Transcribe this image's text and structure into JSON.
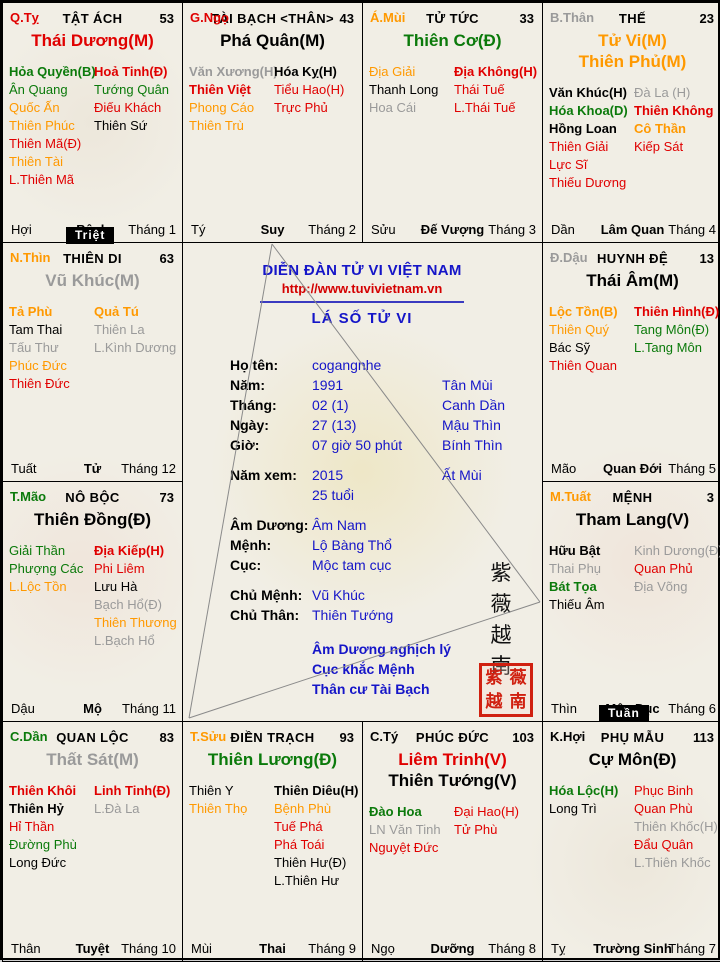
{
  "page": {
    "forum_title": "DIỄN ĐÀN TỬ VI VIỆT NAM",
    "url": "http://www.tuvivietnam.vn",
    "chart_title": "LÁ SỐ TỬ VI",
    "vertical_motto": "紫薇越南",
    "seal_chars": "紫薇越南"
  },
  "badges": {
    "triet": "Triệt",
    "tuan": "Tuần"
  },
  "info_rows": [
    {
      "l": "Họ tên:",
      "v": "cogangnhe",
      "e": "",
      "sp": false
    },
    {
      "l": "Năm:",
      "v": "1991",
      "e": "Tân Mùi",
      "sp": false
    },
    {
      "l": "Tháng:",
      "v": "02 (1)",
      "e": "Canh Dần",
      "sp": false
    },
    {
      "l": "Ngày:",
      "v": "27 (13)",
      "e": "Mậu Thìn",
      "sp": false
    },
    {
      "l": "Giờ:",
      "v": "07 giờ 50 phút",
      "e": "Bính Thìn",
      "sp": false
    },
    {
      "l": "Năm xem:",
      "v": "2015",
      "e": "Ất Mùi",
      "sp": true
    },
    {
      "l": "",
      "v": "25 tuổi",
      "e": "",
      "sp": false
    },
    {
      "l": "Âm Dương:",
      "v": "Âm Nam",
      "e": "",
      "sp": true
    },
    {
      "l": "Mệnh:",
      "v": "Lộ Bàng Thổ",
      "e": "",
      "sp": false
    },
    {
      "l": "Cục:",
      "v": "Mộc tam cục",
      "e": "",
      "sp": false
    },
    {
      "l": "Chủ Mệnh:",
      "v": "Vũ Khúc",
      "e": "",
      "sp": true
    },
    {
      "l": "Chủ Thân:",
      "v": "Thiên Tướng",
      "e": "",
      "sp": false
    }
  ],
  "notes": [
    "Âm Dương nghịch lý",
    "Cục khắc Mệnh",
    "Thân cư Tài Bạch"
  ],
  "palaces": [
    {
      "cell": "r1c1",
      "branch": "Q.Tỵ",
      "branch_color": "red",
      "name": "TẬT ÁCH",
      "number": "53",
      "mains": [
        [
          "Thái Dương(M)",
          "red"
        ]
      ],
      "left": [
        [
          "Hỏa Quyền(B)",
          "green",
          1
        ],
        [
          "Ân Quang",
          "green",
          0
        ],
        [
          "Quốc Ấn",
          "orange",
          0
        ],
        [
          "Thiên Phúc",
          "orange",
          0
        ],
        [
          "Thiên Mã(Đ)",
          "red",
          0
        ],
        [
          "Thiên Tài",
          "orange",
          0
        ],
        [
          "L.Thiên Mã",
          "red",
          0
        ]
      ],
      "right": [
        [
          "Hoả Tinh(Đ)",
          "red",
          1
        ],
        [
          "Tướng Quân",
          "green",
          0
        ],
        [
          "Điếu Khách",
          "red",
          0
        ],
        [
          "Thiên Sứ",
          "black",
          0
        ]
      ],
      "footer": [
        "Hợi",
        "Bệnh",
        "Tháng 1"
      ]
    },
    {
      "cell": "r1c2",
      "branch": "G.Ngọ",
      "branch_color": "red",
      "name": "TÀI BẠCH <THÂN>",
      "number": "43",
      "mains": [
        [
          "Phá Quân(M)",
          "black"
        ]
      ],
      "left": [
        [
          "Văn Xương(H)",
          "gray",
          1
        ],
        [
          "Thiên Việt",
          "red",
          1
        ],
        [
          "Phong Cáo",
          "orange",
          0
        ],
        [
          "Thiên Trù",
          "orange",
          0
        ]
      ],
      "right": [
        [
          "Hóa Kỵ(H)",
          "black",
          1
        ],
        [
          "Tiểu Hao(H)",
          "red",
          0
        ],
        [
          "Trực Phủ",
          "red",
          0
        ]
      ],
      "footer": [
        "Tý",
        "Suy",
        "Tháng 2"
      ]
    },
    {
      "cell": "r1c3",
      "branch": "Á.Mùi",
      "branch_color": "orange",
      "name": "TỬ TỨC",
      "number": "33",
      "mains": [
        [
          "Thiên Cơ(Đ)",
          "green"
        ]
      ],
      "left": [
        [
          "Địa Giải",
          "orange",
          0
        ],
        [
          "Thanh Long",
          "black",
          0
        ],
        [
          "Hoa Cái",
          "gray",
          0
        ]
      ],
      "right": [
        [
          "Địa Không(H)",
          "red",
          1
        ],
        [
          "Thái Tuế",
          "red",
          0
        ],
        [
          "L.Thái Tuế",
          "red",
          0
        ]
      ],
      "footer": [
        "Sửu",
        "Đế Vượng",
        "Tháng 3"
      ]
    },
    {
      "cell": "r1c4",
      "branch": "B.Thân",
      "branch_color": "gray",
      "name": "THẾ",
      "number": "23",
      "mains": [
        [
          "Tử Vi(M)",
          "orange"
        ],
        [
          "Thiên Phủ(M)",
          "orange"
        ]
      ],
      "left": [
        [
          "Văn Khúc(H)",
          "black",
          1
        ],
        [
          "Hóa Khoa(D)",
          "green",
          1
        ],
        [
          "Hồng Loan",
          "black",
          1
        ],
        [
          "Thiên Giải",
          "red",
          0
        ],
        [
          "Lực Sĩ",
          "red",
          0
        ],
        [
          "Thiếu Dương",
          "red",
          0
        ]
      ],
      "right": [
        [
          "Đà La (H)",
          "gray",
          0
        ],
        [
          "Thiên Không",
          "red",
          1
        ],
        [
          "Cô Thần",
          "orange",
          1
        ],
        [
          "Kiếp Sát",
          "red",
          0
        ]
      ],
      "footer": [
        "Dần",
        "Lâm Quan",
        "Tháng 4"
      ]
    },
    {
      "cell": "r2c1",
      "branch": "N.Thìn",
      "branch_color": "orange",
      "name": "THIÊN DI",
      "number": "63",
      "mains": [
        [
          "Vũ Khúc(M)",
          "gray"
        ]
      ],
      "left": [
        [
          "Tả Phù",
          "orange",
          1
        ],
        [
          "Tam Thai",
          "black",
          0
        ],
        [
          "Tấu Thư",
          "gray",
          0
        ],
        [
          "Phúc Đức",
          "orange",
          0
        ],
        [
          "Thiên Đức",
          "red",
          0
        ]
      ],
      "right": [
        [
          "Quả Tú",
          "orange",
          1
        ],
        [
          "Thiên La",
          "gray",
          0
        ],
        [
          "L.Kình Dương",
          "gray",
          0
        ]
      ],
      "footer": [
        "Tuất",
        "Tử",
        "Tháng 12"
      ]
    },
    {
      "cell": "r2c4",
      "branch": "Đ.Dậu",
      "branch_color": "gray",
      "name": "HUYNH ĐỆ",
      "number": "13",
      "mains": [
        [
          "Thái Âm(M)",
          "black"
        ]
      ],
      "left": [
        [
          "Lộc Tồn(B)",
          "orange",
          1
        ],
        [
          "Thiên Quý",
          "orange",
          0
        ],
        [
          "Bác Sỹ",
          "black",
          0
        ],
        [
          "Thiên Quan",
          "red",
          0
        ]
      ],
      "right": [
        [
          "Thiên Hình(Đ)",
          "red",
          1
        ],
        [
          "Tang Môn(Đ)",
          "green",
          0
        ],
        [
          "L.Tang Môn",
          "green",
          0
        ]
      ],
      "footer": [
        "Mão",
        "Quan Đới",
        "Tháng 5"
      ]
    },
    {
      "cell": "r3c1",
      "branch": "T.Mão",
      "branch_color": "green",
      "name": "NÔ BỘC",
      "number": "73",
      "mains": [
        [
          "Thiên Đồng(Đ)",
          "black"
        ]
      ],
      "left": [
        [
          "Giải Thần",
          "green",
          0
        ],
        [
          "Phượng Các",
          "green",
          0
        ],
        [
          "L.Lộc Tồn",
          "orange",
          0
        ]
      ],
      "right": [
        [
          "Địa Kiếp(H)",
          "red",
          1
        ],
        [
          "Phi Liêm",
          "red",
          0
        ],
        [
          "Lưu Hà",
          "black",
          0
        ],
        [
          "Bạch Hổ(Đ)",
          "gray",
          0
        ],
        [
          "Thiên Thương",
          "orange",
          0
        ],
        [
          "L.Bạch Hổ",
          "gray",
          0
        ]
      ],
      "footer": [
        "Dậu",
        "Mộ",
        "Tháng 11"
      ]
    },
    {
      "cell": "r3c4",
      "branch": "M.Tuất",
      "branch_color": "orange",
      "name": "MỆNH",
      "number": "3",
      "mains": [
        [
          "Tham Lang(V)",
          "black"
        ]
      ],
      "left": [
        [
          "Hữu Bật",
          "black",
          1
        ],
        [
          "Thai Phụ",
          "gray",
          0
        ],
        [
          "Bát Tọa",
          "green",
          1
        ],
        [
          "Thiếu Âm",
          "black",
          0
        ]
      ],
      "right": [
        [
          "Kinh Dương(Đ)",
          "gray",
          0
        ],
        [
          "Quan Phủ",
          "red",
          0
        ],
        [
          "Địa Võng",
          "gray",
          0
        ]
      ],
      "footer": [
        "Thìn",
        "Mộc Dục",
        "Tháng 6"
      ]
    },
    {
      "cell": "r4c1",
      "branch": "C.Dần",
      "branch_color": "green",
      "name": "QUAN LỘC",
      "number": "83",
      "mains": [
        [
          "Thất Sát(M)",
          "gray"
        ]
      ],
      "left": [
        [
          "Thiên Khôi",
          "red",
          1
        ],
        [
          "Thiên Hỷ",
          "black",
          1
        ],
        [
          "Hỉ Thần",
          "red",
          0
        ],
        [
          "Đường Phù",
          "green",
          0
        ],
        [
          "Long Đức",
          "black",
          0
        ]
      ],
      "right": [
        [
          "Linh Tinh(Đ)",
          "red",
          1
        ],
        [
          "L.Đà La",
          "gray",
          0
        ]
      ],
      "footer": [
        "Thân",
        "Tuyệt",
        "Tháng 10"
      ]
    },
    {
      "cell": "r4c2",
      "branch": "T.Sửu",
      "branch_color": "orange",
      "name": "ĐIỀN TRẠCH",
      "number": "93",
      "mains": [
        [
          "Thiên Lương(Đ)",
          "green"
        ]
      ],
      "left": [
        [
          "Thiên Y",
          "black",
          0
        ],
        [
          "Thiên Thọ",
          "orange",
          0
        ]
      ],
      "right": [
        [
          "Thiên Diêu(H)",
          "black",
          1
        ],
        [
          "Bệnh Phù",
          "orange",
          0
        ],
        [
          "Tuế Phá",
          "red",
          0
        ],
        [
          "Phá Toái",
          "red",
          0
        ],
        [
          "Thiên Hư(Đ)",
          "black",
          0
        ],
        [
          "L.Thiên Hư",
          "black",
          0
        ]
      ],
      "footer": [
        "Mùi",
        "Thai",
        "Tháng 9"
      ]
    },
    {
      "cell": "r4c3",
      "branch": "C.Tý",
      "branch_color": "black",
      "name": "PHÚC ĐỨC",
      "number": "103",
      "mains": [
        [
          "Liêm Trinh(V)",
          "red"
        ],
        [
          "Thiên Tướng(V)",
          "black"
        ]
      ],
      "left": [
        [
          "Đào Hoa",
          "green",
          1
        ],
        [
          "LN Văn Tinh",
          "gray",
          0
        ],
        [
          "Nguyệt Đức",
          "red",
          0
        ]
      ],
      "right": [
        [
          "Đại Hao(H)",
          "red",
          0
        ],
        [
          "Tử Phù",
          "red",
          0
        ]
      ],
      "footer": [
        "Ngọ",
        "Dưỡng",
        "Tháng 8"
      ]
    },
    {
      "cell": "r4c4",
      "branch": "K.Hợi",
      "branch_color": "black",
      "name": "PHỤ MẪU",
      "number": "113",
      "mains": [
        [
          "Cự Môn(Đ)",
          "black"
        ]
      ],
      "left": [
        [
          "Hóa Lộc(H)",
          "green",
          1
        ],
        [
          "Long Trì",
          "black",
          0
        ]
      ],
      "right": [
        [
          "Phục Binh",
          "red",
          0
        ],
        [
          "Quan Phù",
          "red",
          0
        ],
        [
          "Thiên Khốc(H)",
          "gray",
          0
        ],
        [
          "Đẩu Quân",
          "red",
          0
        ],
        [
          "L.Thiên Khốc",
          "gray",
          0
        ]
      ],
      "footer": [
        "Tỵ",
        "Trường Sinh",
        "Tháng 7"
      ]
    }
  ]
}
